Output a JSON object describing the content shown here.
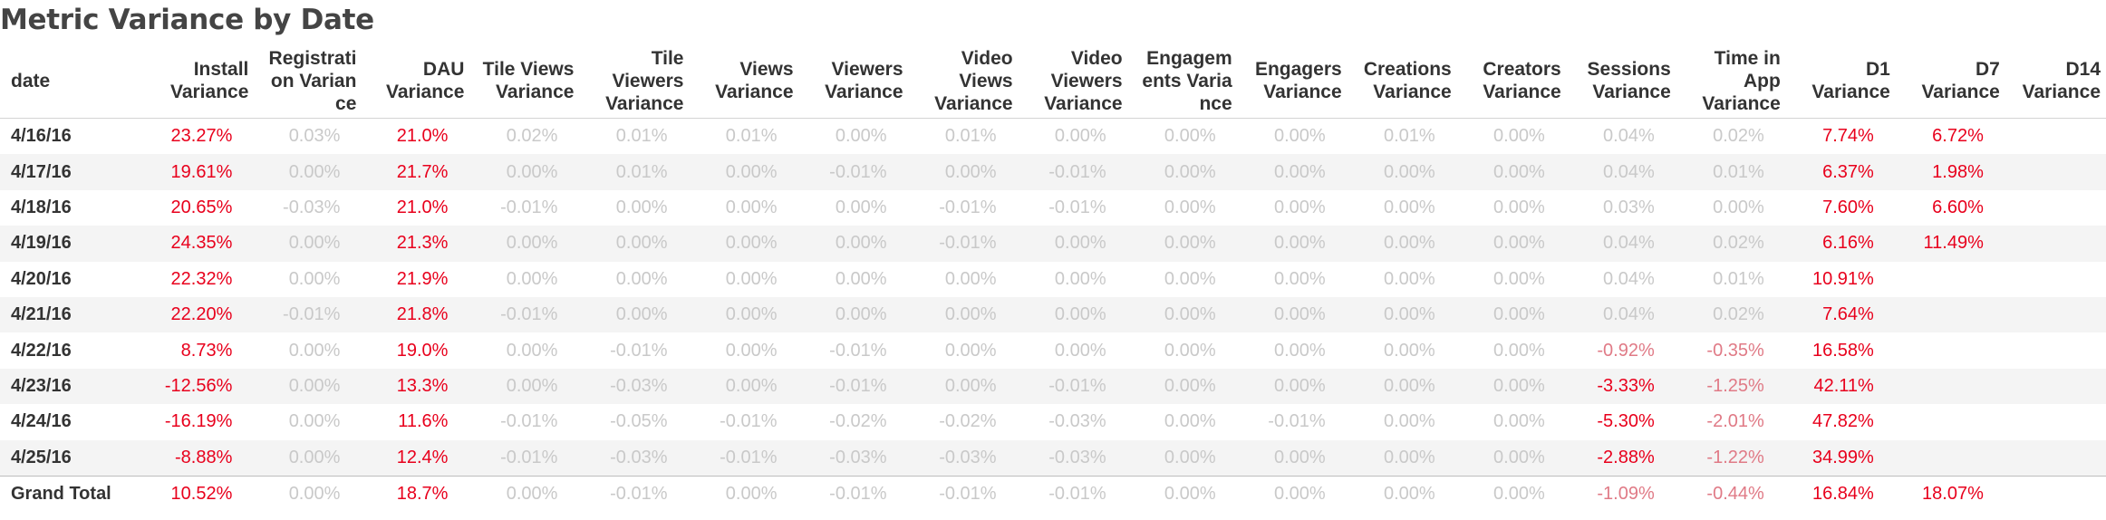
{
  "title": "Metric Variance by Date",
  "columns": [
    "date",
    "Install Variance",
    "Registrati on Varian ce",
    "DAU Variance",
    "Tile Views Variance",
    "Tile Viewers Variance",
    "Views Variance",
    "Viewers Variance",
    "Video Views Variance",
    "Video Viewers Variance",
    "Engagem ents Varia nce",
    "Engagers Variance",
    "Creations Variance",
    "Creators Variance",
    "Sessions Variance",
    "Time in App Variance",
    "D1 Variance",
    "D7 Variance",
    "D14 Variance"
  ],
  "rows": [
    [
      "4/16/16",
      "23.27%",
      "0.03%",
      "21.0%",
      "0.02%",
      "0.01%",
      "0.01%",
      "0.00%",
      "0.01%",
      "0.00%",
      "0.00%",
      "0.00%",
      "0.01%",
      "0.00%",
      "0.04%",
      "0.02%",
      "7.74%",
      "6.72%",
      ""
    ],
    [
      "4/17/16",
      "19.61%",
      "0.00%",
      "21.7%",
      "0.00%",
      "0.01%",
      "0.00%",
      "-0.01%",
      "0.00%",
      "-0.01%",
      "0.00%",
      "0.00%",
      "0.00%",
      "0.00%",
      "0.04%",
      "0.01%",
      "6.37%",
      "1.98%",
      ""
    ],
    [
      "4/18/16",
      "20.65%",
      "-0.03%",
      "21.0%",
      "-0.01%",
      "0.00%",
      "0.00%",
      "0.00%",
      "-0.01%",
      "-0.01%",
      "0.00%",
      "0.00%",
      "0.00%",
      "0.00%",
      "0.03%",
      "0.00%",
      "7.60%",
      "6.60%",
      ""
    ],
    [
      "4/19/16",
      "24.35%",
      "0.00%",
      "21.3%",
      "0.00%",
      "0.00%",
      "0.00%",
      "0.00%",
      "-0.01%",
      "0.00%",
      "0.00%",
      "0.00%",
      "0.00%",
      "0.00%",
      "0.04%",
      "0.02%",
      "6.16%",
      "11.49%",
      ""
    ],
    [
      "4/20/16",
      "22.32%",
      "0.00%",
      "21.9%",
      "0.00%",
      "0.00%",
      "0.00%",
      "0.00%",
      "0.00%",
      "0.00%",
      "0.00%",
      "0.00%",
      "0.00%",
      "0.00%",
      "0.04%",
      "0.01%",
      "10.91%",
      "",
      ""
    ],
    [
      "4/21/16",
      "22.20%",
      "-0.01%",
      "21.8%",
      "-0.01%",
      "0.00%",
      "0.00%",
      "0.00%",
      "0.00%",
      "0.00%",
      "0.00%",
      "0.00%",
      "0.00%",
      "0.00%",
      "0.04%",
      "0.02%",
      "7.64%",
      "",
      ""
    ],
    [
      "4/22/16",
      "8.73%",
      "0.00%",
      "19.0%",
      "0.00%",
      "-0.01%",
      "0.00%",
      "-0.01%",
      "0.00%",
      "0.00%",
      "0.00%",
      "0.00%",
      "0.00%",
      "0.00%",
      "-0.92%",
      "-0.35%",
      "16.58%",
      "",
      ""
    ],
    [
      "4/23/16",
      "-12.56%",
      "0.00%",
      "13.3%",
      "0.00%",
      "-0.03%",
      "0.00%",
      "-0.01%",
      "0.00%",
      "-0.01%",
      "0.00%",
      "0.00%",
      "0.00%",
      "0.00%",
      "-3.33%",
      "-1.25%",
      "42.11%",
      "",
      ""
    ],
    [
      "4/24/16",
      "-16.19%",
      "0.00%",
      "11.6%",
      "-0.01%",
      "-0.05%",
      "-0.01%",
      "-0.02%",
      "-0.02%",
      "-0.03%",
      "0.00%",
      "-0.01%",
      "0.00%",
      "0.00%",
      "-5.30%",
      "-2.01%",
      "47.82%",
      "",
      ""
    ],
    [
      "4/25/16",
      "-8.88%",
      "0.00%",
      "12.4%",
      "-0.01%",
      "-0.03%",
      "-0.01%",
      "-0.03%",
      "-0.03%",
      "-0.03%",
      "0.00%",
      "0.00%",
      "0.00%",
      "0.00%",
      "-2.88%",
      "-1.22%",
      "34.99%",
      "",
      ""
    ]
  ],
  "total": [
    "Grand Total",
    "10.52%",
    "0.00%",
    "18.7%",
    "0.00%",
    "-0.01%",
    "0.00%",
    "-0.01%",
    "-0.01%",
    "-0.01%",
    "0.00%",
    "0.00%",
    "0.00%",
    "0.00%",
    "-1.09%",
    "-0.44%",
    "16.84%",
    "18.07%",
    ""
  ],
  "colors": {
    "highlight": "#e8001c",
    "soft": "#e07a86",
    "muted": "#c9c9c9",
    "header": "#333333"
  }
}
